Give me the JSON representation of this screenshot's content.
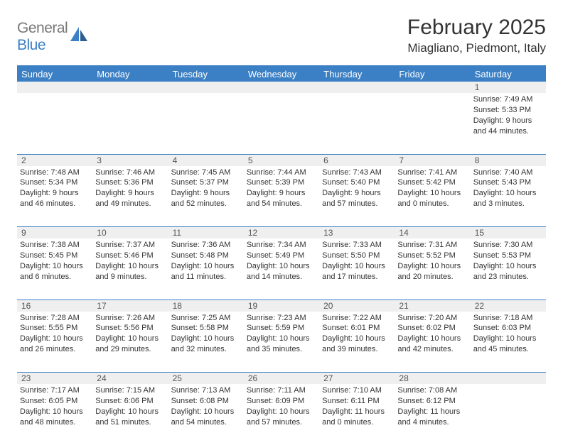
{
  "brand": {
    "word1": "General",
    "word2": "Blue"
  },
  "title": "February 2025",
  "location": "Miagliano, Piedmont, Italy",
  "colors": {
    "header_bg": "#3b7fc4",
    "header_text": "#ffffff",
    "daynum_bg": "#efefef",
    "page_bg": "#ffffff",
    "text": "#333333",
    "logo_gray": "#777777",
    "logo_blue": "#3b7fc4",
    "divider": "#3b7fc4"
  },
  "typography": {
    "title_fontsize": 30,
    "location_fontsize": 17,
    "header_fontsize": 13,
    "daynum_fontsize": 12,
    "detail_fontsize": 11
  },
  "day_headers": [
    "Sunday",
    "Monday",
    "Tuesday",
    "Wednesday",
    "Thursday",
    "Friday",
    "Saturday"
  ],
  "weeks": [
    [
      {
        "empty": true
      },
      {
        "empty": true
      },
      {
        "empty": true
      },
      {
        "empty": true
      },
      {
        "empty": true
      },
      {
        "empty": true
      },
      {
        "day": "1",
        "sunrise": "Sunrise: 7:49 AM",
        "sunset": "Sunset: 5:33 PM",
        "daylight": "Daylight: 9 hours and 44 minutes."
      }
    ],
    [
      {
        "day": "2",
        "sunrise": "Sunrise: 7:48 AM",
        "sunset": "Sunset: 5:34 PM",
        "daylight": "Daylight: 9 hours and 46 minutes."
      },
      {
        "day": "3",
        "sunrise": "Sunrise: 7:46 AM",
        "sunset": "Sunset: 5:36 PM",
        "daylight": "Daylight: 9 hours and 49 minutes."
      },
      {
        "day": "4",
        "sunrise": "Sunrise: 7:45 AM",
        "sunset": "Sunset: 5:37 PM",
        "daylight": "Daylight: 9 hours and 52 minutes."
      },
      {
        "day": "5",
        "sunrise": "Sunrise: 7:44 AM",
        "sunset": "Sunset: 5:39 PM",
        "daylight": "Daylight: 9 hours and 54 minutes."
      },
      {
        "day": "6",
        "sunrise": "Sunrise: 7:43 AM",
        "sunset": "Sunset: 5:40 PM",
        "daylight": "Daylight: 9 hours and 57 minutes."
      },
      {
        "day": "7",
        "sunrise": "Sunrise: 7:41 AM",
        "sunset": "Sunset: 5:42 PM",
        "daylight": "Daylight: 10 hours and 0 minutes."
      },
      {
        "day": "8",
        "sunrise": "Sunrise: 7:40 AM",
        "sunset": "Sunset: 5:43 PM",
        "daylight": "Daylight: 10 hours and 3 minutes."
      }
    ],
    [
      {
        "day": "9",
        "sunrise": "Sunrise: 7:38 AM",
        "sunset": "Sunset: 5:45 PM",
        "daylight": "Daylight: 10 hours and 6 minutes."
      },
      {
        "day": "10",
        "sunrise": "Sunrise: 7:37 AM",
        "sunset": "Sunset: 5:46 PM",
        "daylight": "Daylight: 10 hours and 9 minutes."
      },
      {
        "day": "11",
        "sunrise": "Sunrise: 7:36 AM",
        "sunset": "Sunset: 5:48 PM",
        "daylight": "Daylight: 10 hours and 11 minutes."
      },
      {
        "day": "12",
        "sunrise": "Sunrise: 7:34 AM",
        "sunset": "Sunset: 5:49 PM",
        "daylight": "Daylight: 10 hours and 14 minutes."
      },
      {
        "day": "13",
        "sunrise": "Sunrise: 7:33 AM",
        "sunset": "Sunset: 5:50 PM",
        "daylight": "Daylight: 10 hours and 17 minutes."
      },
      {
        "day": "14",
        "sunrise": "Sunrise: 7:31 AM",
        "sunset": "Sunset: 5:52 PM",
        "daylight": "Daylight: 10 hours and 20 minutes."
      },
      {
        "day": "15",
        "sunrise": "Sunrise: 7:30 AM",
        "sunset": "Sunset: 5:53 PM",
        "daylight": "Daylight: 10 hours and 23 minutes."
      }
    ],
    [
      {
        "day": "16",
        "sunrise": "Sunrise: 7:28 AM",
        "sunset": "Sunset: 5:55 PM",
        "daylight": "Daylight: 10 hours and 26 minutes."
      },
      {
        "day": "17",
        "sunrise": "Sunrise: 7:26 AM",
        "sunset": "Sunset: 5:56 PM",
        "daylight": "Daylight: 10 hours and 29 minutes."
      },
      {
        "day": "18",
        "sunrise": "Sunrise: 7:25 AM",
        "sunset": "Sunset: 5:58 PM",
        "daylight": "Daylight: 10 hours and 32 minutes."
      },
      {
        "day": "19",
        "sunrise": "Sunrise: 7:23 AM",
        "sunset": "Sunset: 5:59 PM",
        "daylight": "Daylight: 10 hours and 35 minutes."
      },
      {
        "day": "20",
        "sunrise": "Sunrise: 7:22 AM",
        "sunset": "Sunset: 6:01 PM",
        "daylight": "Daylight: 10 hours and 39 minutes."
      },
      {
        "day": "21",
        "sunrise": "Sunrise: 7:20 AM",
        "sunset": "Sunset: 6:02 PM",
        "daylight": "Daylight: 10 hours and 42 minutes."
      },
      {
        "day": "22",
        "sunrise": "Sunrise: 7:18 AM",
        "sunset": "Sunset: 6:03 PM",
        "daylight": "Daylight: 10 hours and 45 minutes."
      }
    ],
    [
      {
        "day": "23",
        "sunrise": "Sunrise: 7:17 AM",
        "sunset": "Sunset: 6:05 PM",
        "daylight": "Daylight: 10 hours and 48 minutes."
      },
      {
        "day": "24",
        "sunrise": "Sunrise: 7:15 AM",
        "sunset": "Sunset: 6:06 PM",
        "daylight": "Daylight: 10 hours and 51 minutes."
      },
      {
        "day": "25",
        "sunrise": "Sunrise: 7:13 AM",
        "sunset": "Sunset: 6:08 PM",
        "daylight": "Daylight: 10 hours and 54 minutes."
      },
      {
        "day": "26",
        "sunrise": "Sunrise: 7:11 AM",
        "sunset": "Sunset: 6:09 PM",
        "daylight": "Daylight: 10 hours and 57 minutes."
      },
      {
        "day": "27",
        "sunrise": "Sunrise: 7:10 AM",
        "sunset": "Sunset: 6:11 PM",
        "daylight": "Daylight: 11 hours and 0 minutes."
      },
      {
        "day": "28",
        "sunrise": "Sunrise: 7:08 AM",
        "sunset": "Sunset: 6:12 PM",
        "daylight": "Daylight: 11 hours and 4 minutes."
      },
      {
        "empty": true
      }
    ]
  ]
}
